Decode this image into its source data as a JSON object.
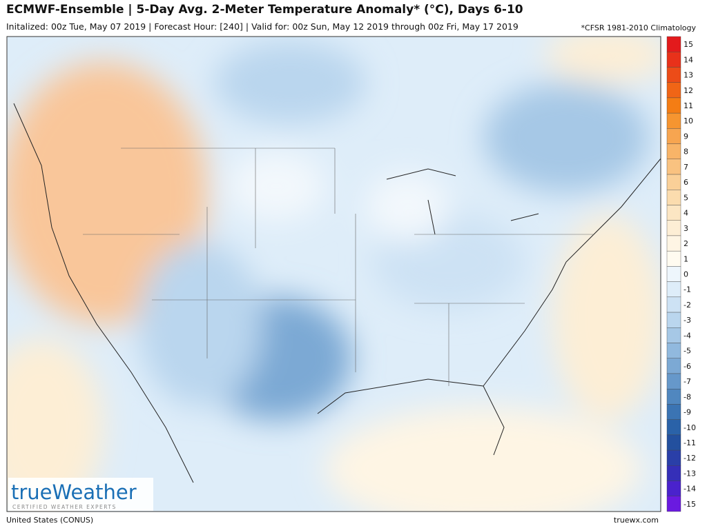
{
  "header": {
    "title": "ECMWF-Ensemble | 5-Day Avg. 2-Meter Temperature Anomaly* (°C), Days 6-10",
    "subtitle": "Initalized: 00z Tue, May 07 2019  |  Forecast Hour: [240]  |  Valid for: 00z Sun, May 12 2019 through 00z Fri, May 17 2019",
    "note": "*CFSR 1981-2010 Climatology"
  },
  "logo": {
    "name": "trueWeather",
    "tagline": "CERTIFIED WEATHER EXPERTS"
  },
  "colorbar": {
    "labels": [
      15,
      14,
      13,
      12,
      11,
      10,
      9,
      8,
      7,
      6,
      5,
      4,
      3,
      2,
      1,
      0,
      -1,
      -2,
      -3,
      -4,
      -5,
      -6,
      -7,
      -8,
      -9,
      -10,
      -11,
      -12,
      -13,
      -14,
      -15
    ],
    "colors": [
      "#e31a1c",
      "#e8311a",
      "#ec4c18",
      "#f06516",
      "#f47d14",
      "#f69530",
      "#f7a550",
      "#f8b468",
      "#f9c280",
      "#fad098",
      "#fbdcae",
      "#fce6c3",
      "#fdeed5",
      "#fef5e4",
      "#fffbf0",
      "#eef6fc",
      "#deedf9",
      "#cde2f4",
      "#bad6ee",
      "#a6c8e6",
      "#91b9de",
      "#7ca9d4",
      "#6698ca",
      "#5087bf",
      "#3b74b3",
      "#2a62a8",
      "#23509e",
      "#2a3fa8",
      "#352fb8",
      "#4a22cc",
      "#6a1ae0"
    ]
  },
  "footer": {
    "region": "United States (CONUS)",
    "site": "truewx.com"
  }
}
